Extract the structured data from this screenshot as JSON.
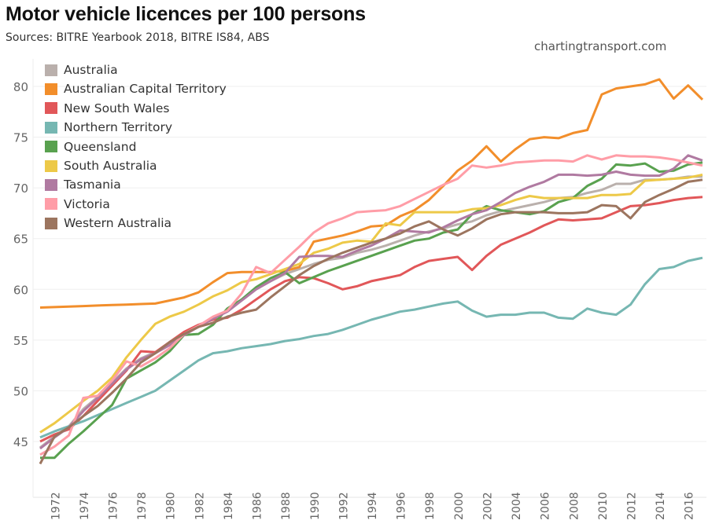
{
  "title": "Motor vehicle licences per 100 persons",
  "subtitle": "Sources: BITRE Yearbook 2018, BITRE IS84, ABS",
  "watermark": "chartingtransport.com",
  "chart_data": {
    "type": "line",
    "title": "Motor vehicle licences per 100 persons",
    "subtitle": "Sources: BITRE Yearbook 2018, BITRE IS84, ABS",
    "xlabel": "",
    "ylabel": "",
    "xlim": [
      1971,
      2017
    ],
    "ylim": [
      42,
      82
    ],
    "yticks": [
      45,
      50,
      55,
      60,
      65,
      70,
      75,
      80
    ],
    "xticks": [
      1972,
      1974,
      1976,
      1978,
      1980,
      1982,
      1984,
      1986,
      1988,
      1990,
      1992,
      1994,
      1996,
      1998,
      2000,
      2002,
      2004,
      2006,
      2008,
      2010,
      2012,
      2014,
      2016
    ],
    "grid": "horizontal",
    "legend_position": "top-left",
    "x": [
      1971,
      1972,
      1973,
      1974,
      1975,
      1976,
      1977,
      1978,
      1979,
      1980,
      1981,
      1982,
      1983,
      1984,
      1985,
      1986,
      1987,
      1988,
      1989,
      1990,
      1991,
      1992,
      1993,
      1994,
      1995,
      1996,
      1997,
      1998,
      1999,
      2000,
      2001,
      2002,
      2003,
      2004,
      2005,
      2006,
      2007,
      2008,
      2009,
      2010,
      2011,
      2012,
      2013,
      2014,
      2015,
      2016,
      2017
    ],
    "series": [
      {
        "name": "Australia",
        "color": "#bab0ac",
        "values": [
          44.4,
          45.5,
          46.5,
          48.2,
          49.4,
          50.8,
          52.2,
          53.2,
          53.8,
          54.6,
          55.6,
          56.4,
          57.2,
          57.9,
          59.0,
          60.1,
          60.8,
          61.5,
          62.0,
          62.5,
          62.9,
          63.1,
          63.6,
          63.9,
          64.3,
          64.8,
          65.3,
          65.7,
          66.0,
          66.4,
          66.7,
          67.3,
          67.7,
          68.0,
          68.3,
          68.6,
          69.0,
          69.1,
          69.5,
          69.8,
          70.4,
          70.4,
          70.8,
          70.8,
          70.9,
          71.1,
          71.1
        ]
      },
      {
        "name": "Australian Capital Territory",
        "color": "#f28e2b",
        "values": [
          58.2,
          58.25,
          58.3,
          58.35,
          58.4,
          58.45,
          58.5,
          58.55,
          58.6,
          58.9,
          59.2,
          59.7,
          60.7,
          61.6,
          61.7,
          61.7,
          61.7,
          61.8,
          62.2,
          64.7,
          65.0,
          65.3,
          65.7,
          66.2,
          66.3,
          67.2,
          67.8,
          68.8,
          70.2,
          71.7,
          72.7,
          74.1,
          72.6,
          73.8,
          74.8,
          75.0,
          74.9,
          75.4,
          75.7,
          79.2,
          79.8,
          80.0,
          80.2,
          80.7,
          78.8,
          80.1,
          78.7
        ]
      },
      {
        "name": "New South Wales",
        "color": "#e15759",
        "values": [
          45.0,
          45.7,
          46.2,
          47.5,
          49.0,
          50.5,
          52.0,
          53.9,
          53.8,
          54.8,
          55.8,
          56.5,
          57.0,
          57.2,
          58.0,
          59.0,
          60.0,
          60.8,
          61.2,
          61.1,
          60.6,
          60.0,
          60.3,
          60.8,
          61.1,
          61.4,
          62.2,
          62.8,
          63.0,
          63.2,
          61.9,
          63.3,
          64.4,
          65.0,
          65.6,
          66.3,
          66.9,
          66.8,
          66.9,
          67.0,
          67.6,
          68.2,
          68.3,
          68.5,
          68.8,
          69.0,
          69.1
        ]
      },
      {
        "name": "Northern Territory",
        "color": "#76b7b2",
        "values": [
          45.4,
          46.0,
          46.5,
          47.0,
          47.6,
          48.2,
          48.8,
          49.4,
          50.0,
          51.0,
          52.0,
          53.0,
          53.7,
          53.9,
          54.2,
          54.4,
          54.6,
          54.9,
          55.1,
          55.4,
          55.6,
          56.0,
          56.5,
          57.0,
          57.4,
          57.8,
          58.0,
          58.3,
          58.6,
          58.8,
          57.9,
          57.3,
          57.5,
          57.5,
          57.7,
          57.7,
          57.2,
          57.1,
          58.1,
          57.7,
          57.5,
          58.5,
          60.5,
          62.0,
          62.2,
          62.8,
          63.1
        ]
      },
      {
        "name": "Queensland",
        "color": "#59a14f",
        "values": [
          43.4,
          43.4,
          44.8,
          46.0,
          47.3,
          48.6,
          51.2,
          52.0,
          52.8,
          53.9,
          55.5,
          55.6,
          56.5,
          58.1,
          59.0,
          60.2,
          61.1,
          61.7,
          60.6,
          61.2,
          61.8,
          62.3,
          62.8,
          63.3,
          63.8,
          64.3,
          64.8,
          65.0,
          65.6,
          65.9,
          67.4,
          68.2,
          67.8,
          67.6,
          67.4,
          67.7,
          68.6,
          69.0,
          70.2,
          70.9,
          72.3,
          72.2,
          72.4,
          71.6,
          71.7,
          72.3,
          72.5
        ]
      },
      {
        "name": "South Australia",
        "color": "#edc948",
        "values": [
          45.9,
          46.8,
          47.9,
          49.0,
          50.0,
          51.3,
          53.3,
          55.0,
          56.6,
          57.3,
          57.8,
          58.5,
          59.3,
          59.9,
          60.7,
          61.0,
          61.5,
          62.0,
          62.5,
          63.6,
          64.0,
          64.6,
          64.8,
          64.7,
          66.5,
          66.3,
          67.6,
          67.6,
          67.6,
          67.6,
          67.9,
          68.0,
          68.3,
          68.8,
          69.2,
          69.0,
          69.0,
          69.0,
          69.0,
          69.3,
          69.3,
          69.4,
          70.7,
          70.8,
          70.9,
          71.0,
          71.3
        ]
      },
      {
        "name": "Tasmania",
        "color": "#b07aa1",
        "values": [
          44.3,
          45.4,
          46.4,
          48.0,
          49.3,
          50.7,
          52.1,
          53.1,
          53.7,
          54.5,
          55.5,
          56.3,
          57.1,
          57.8,
          58.9,
          60.0,
          60.8,
          61.6,
          63.2,
          63.3,
          63.3,
          63.2,
          63.8,
          64.3,
          65.0,
          65.8,
          65.7,
          65.6,
          66.1,
          66.8,
          67.4,
          67.8,
          68.6,
          69.5,
          70.1,
          70.6,
          71.3,
          71.3,
          71.2,
          71.3,
          71.6,
          71.3,
          71.2,
          71.2,
          71.9,
          73.2,
          72.7
        ]
      },
      {
        "name": "Victoria",
        "color": "#ff9da7",
        "values": [
          43.7,
          44.5,
          45.6,
          49.3,
          49.5,
          51.0,
          52.9,
          52.4,
          53.2,
          54.2,
          55.6,
          56.4,
          57.3,
          57.9,
          59.6,
          62.2,
          61.6,
          62.9,
          64.2,
          65.6,
          66.5,
          67.0,
          67.6,
          67.7,
          67.8,
          68.2,
          68.9,
          69.6,
          70.3,
          70.9,
          72.2,
          72.0,
          72.2,
          72.5,
          72.6,
          72.7,
          72.7,
          72.6,
          73.2,
          72.8,
          73.2,
          73.1,
          73.1,
          73.0,
          72.8,
          72.5,
          72.2
        ]
      },
      {
        "name": "Western Australia",
        "color": "#9c755f",
        "values": [
          42.8,
          45.5,
          46.4,
          47.5,
          48.5,
          49.8,
          51.2,
          52.8,
          53.7,
          54.8,
          55.6,
          56.3,
          56.7,
          57.3,
          57.7,
          58.0,
          59.2,
          60.3,
          61.4,
          62.3,
          63.0,
          63.6,
          64.1,
          64.6,
          65.0,
          65.5,
          66.2,
          66.7,
          65.9,
          65.3,
          66.0,
          66.9,
          67.4,
          67.6,
          67.6,
          67.6,
          67.5,
          67.5,
          67.6,
          68.3,
          68.2,
          67.0,
          68.6,
          69.3,
          69.9,
          70.6,
          70.8
        ]
      }
    ]
  }
}
